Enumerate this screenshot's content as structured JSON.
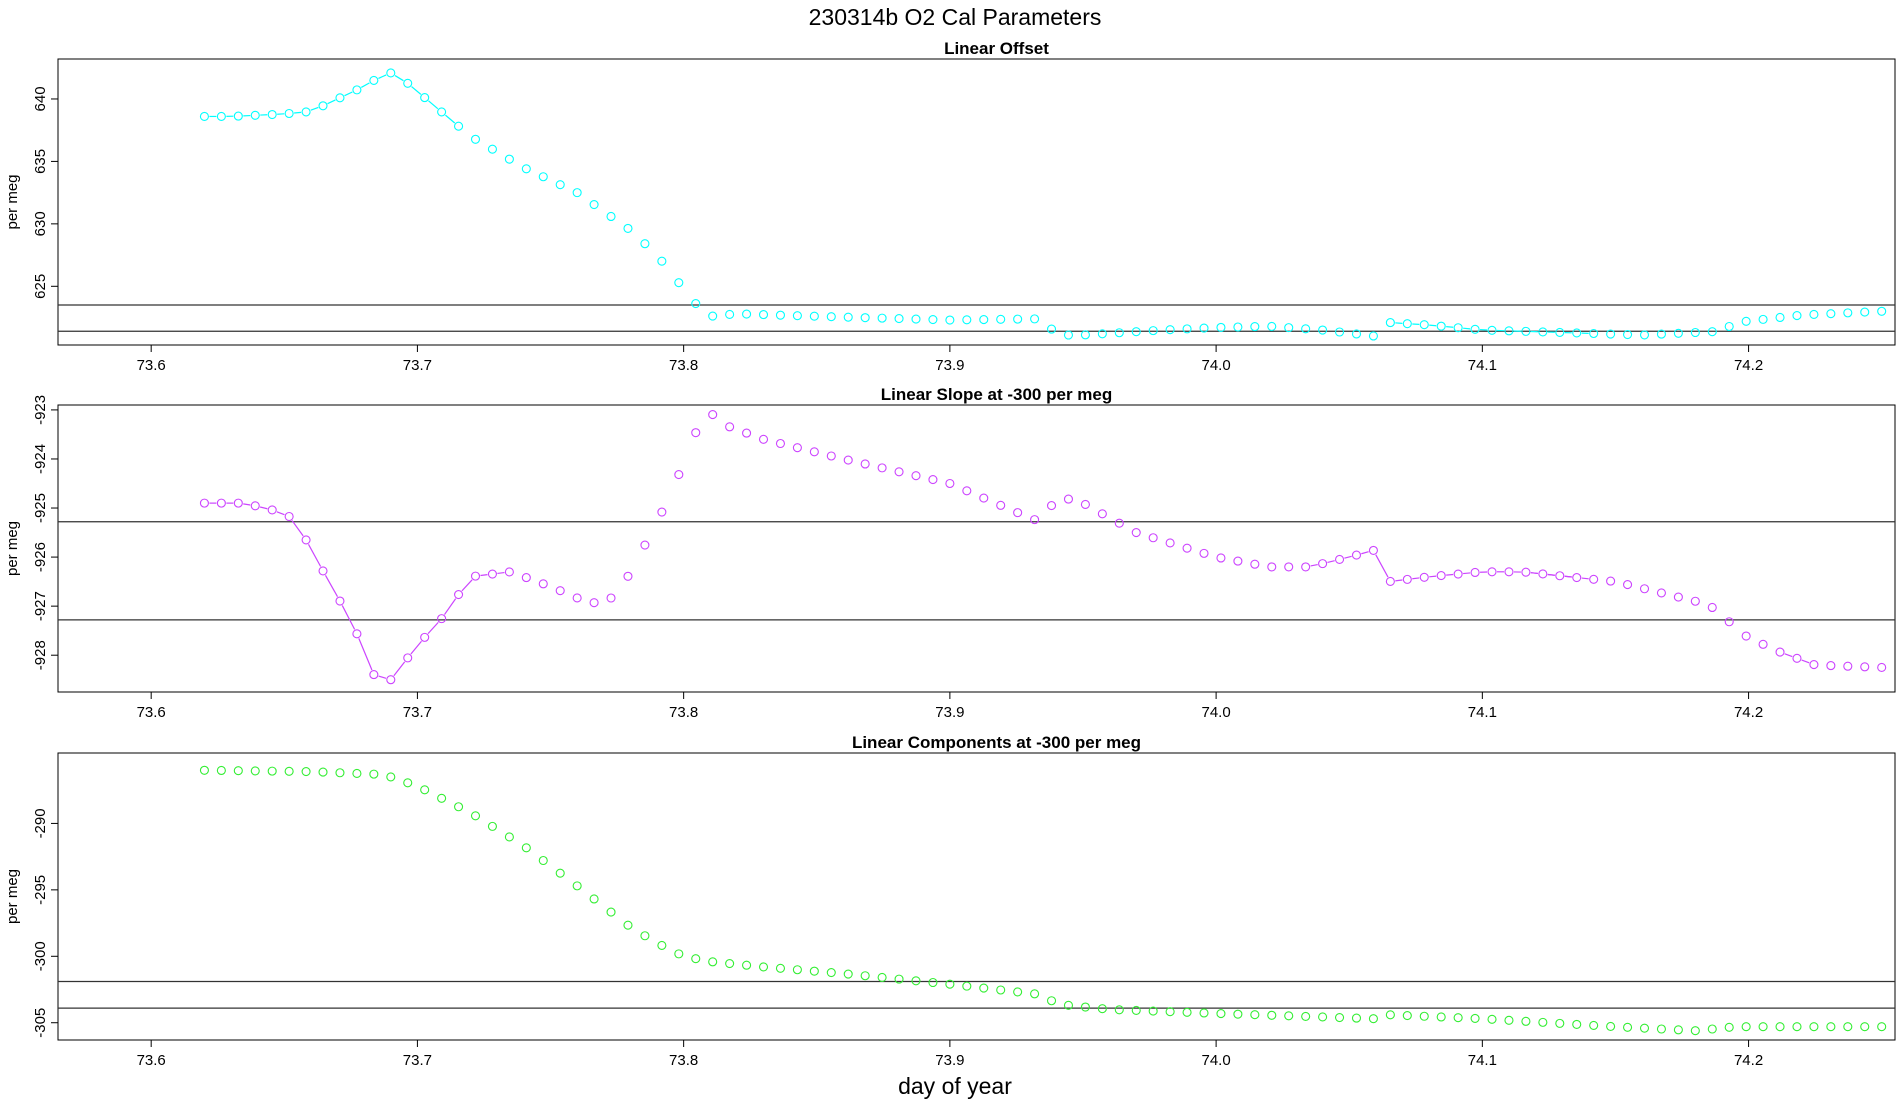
{
  "figure": {
    "title": "230314b   O2 Cal Parameters",
    "xlabel": "day of year"
  },
  "chart_data": [
    {
      "type": "scatter",
      "title": "Linear Offset",
      "ylabel": "per meg",
      "color": "#00ffff",
      "xlim": [
        73.565,
        74.255
      ],
      "ylim": [
        620.3,
        643.2
      ],
      "x_ticks": [
        "73.6",
        "73.7",
        "73.8",
        "73.9",
        "74.0",
        "74.1",
        "74.2"
      ],
      "y_ticks": [
        "625",
        "630",
        "635",
        "640"
      ],
      "hlines": [
        623.5,
        621.4
      ],
      "connected_ranges": [
        [
          0.0,
          0.15
        ],
        [
          0.715,
          0.79
        ],
        [
          0.805,
          0.82
        ]
      ],
      "keys": [
        [
          73.62,
          638.6
        ],
        [
          73.625,
          638.6
        ],
        [
          73.63,
          638.6
        ],
        [
          73.64,
          638.7
        ],
        [
          73.65,
          638.8
        ],
        [
          73.66,
          639.0
        ],
        [
          73.67,
          640.0
        ],
        [
          73.68,
          641.0
        ],
        [
          73.689,
          642.2
        ],
        [
          73.695,
          641.5
        ],
        [
          73.7,
          640.6
        ],
        [
          73.72,
          637.0
        ],
        [
          73.74,
          634.5
        ],
        [
          73.76,
          632.5
        ],
        [
          73.77,
          631.0
        ],
        [
          73.78,
          629.5
        ],
        [
          73.79,
          627.5
        ],
        [
          73.8,
          624.8
        ],
        [
          73.805,
          623.5
        ],
        [
          73.81,
          622.6
        ],
        [
          73.82,
          622.8
        ],
        [
          73.85,
          622.6
        ],
        [
          73.9,
          622.3
        ],
        [
          73.935,
          622.4
        ],
        [
          73.94,
          621.1
        ],
        [
          73.95,
          621.1
        ],
        [
          73.98,
          621.5
        ],
        [
          74.0,
          621.7
        ],
        [
          74.02,
          621.8
        ],
        [
          74.04,
          621.5
        ],
        [
          74.06,
          621.0
        ],
        [
          74.065,
          622.1
        ],
        [
          74.08,
          621.9
        ],
        [
          74.1,
          621.5
        ],
        [
          74.13,
          621.3
        ],
        [
          74.16,
          621.1
        ],
        [
          74.19,
          621.4
        ],
        [
          74.195,
          622.1
        ],
        [
          74.22,
          622.7
        ],
        [
          74.25,
          623.0
        ]
      ]
    },
    {
      "type": "scatter",
      "title": "Linear Slope at -300 per meg",
      "ylabel": "per meg",
      "color": "#cc44ff",
      "xlim": [
        73.565,
        74.255
      ],
      "ylim": [
        -928.75,
        -922.9
      ],
      "x_ticks": [
        "73.6",
        "73.7",
        "73.8",
        "73.9",
        "74.0",
        "74.1",
        "74.2"
      ],
      "y_ticks": [
        "-928",
        "-927",
        "-926",
        "-925",
        "-924",
        "-923"
      ],
      "hlines": [
        -925.28,
        -927.28
      ],
      "connected_ranges": [
        [
          0.0,
          0.18
        ],
        [
          0.66,
          0.82
        ],
        [
          0.94,
          0.95
        ],
        [
          0.795,
          0.81
        ]
      ],
      "keys": [
        [
          73.62,
          -924.9
        ],
        [
          73.635,
          -924.9
        ],
        [
          73.65,
          -925.1
        ],
        [
          73.655,
          -925.3
        ],
        [
          73.66,
          -925.85
        ],
        [
          73.67,
          -926.8
        ],
        [
          73.68,
          -927.85
        ],
        [
          73.685,
          -928.6
        ],
        [
          73.69,
          -928.5
        ],
        [
          73.7,
          -927.8
        ],
        [
          73.71,
          -927.2
        ],
        [
          73.72,
          -926.4
        ],
        [
          73.735,
          -926.3
        ],
        [
          73.75,
          -926.6
        ],
        [
          73.765,
          -926.95
        ],
        [
          73.775,
          -926.8
        ],
        [
          73.78,
          -926.3
        ],
        [
          73.79,
          -925.3
        ],
        [
          73.8,
          -924.1
        ],
        [
          73.805,
          -923.4
        ],
        [
          73.81,
          -923.05
        ],
        [
          73.815,
          -923.3
        ],
        [
          73.83,
          -923.6
        ],
        [
          73.86,
          -924.0
        ],
        [
          73.9,
          -924.5
        ],
        [
          73.93,
          -925.2
        ],
        [
          73.935,
          -925.3
        ],
        [
          73.94,
          -924.75
        ],
        [
          73.95,
          -924.9
        ],
        [
          73.97,
          -925.5
        ],
        [
          74.0,
          -926.0
        ],
        [
          74.02,
          -926.2
        ],
        [
          74.035,
          -926.2
        ],
        [
          74.05,
          -926.0
        ],
        [
          74.06,
          -925.85
        ],
        [
          74.065,
          -926.5
        ],
        [
          74.08,
          -926.4
        ],
        [
          74.1,
          -926.3
        ],
        [
          74.115,
          -926.3
        ],
        [
          74.15,
          -926.5
        ],
        [
          74.18,
          -926.9
        ],
        [
          74.19,
          -927.1
        ],
        [
          74.195,
          -927.5
        ],
        [
          74.21,
          -927.9
        ],
        [
          74.225,
          -928.2
        ],
        [
          74.25,
          -928.25
        ]
      ]
    },
    {
      "type": "scatter",
      "title": "Linear Components at -300 per meg",
      "ylabel": "per meg",
      "color": "#33ee33",
      "xlim": [
        73.565,
        74.255
      ],
      "ylim": [
        -306.3,
        -284.7
      ],
      "x_ticks": [
        "73.6",
        "73.7",
        "73.8",
        "73.9",
        "74.0",
        "74.1",
        "74.2"
      ],
      "y_ticks": [
        "-305",
        "-300",
        "-295",
        "-290"
      ],
      "hlines": [
        -301.9,
        -303.9
      ],
      "connected_ranges": [],
      "keys": [
        [
          73.62,
          -286.0
        ],
        [
          73.66,
          -286.1
        ],
        [
          73.685,
          -286.3
        ],
        [
          73.69,
          -286.5
        ],
        [
          73.7,
          -287.2
        ],
        [
          73.72,
          -289.2
        ],
        [
          73.74,
          -291.7
        ],
        [
          73.76,
          -294.7
        ],
        [
          73.78,
          -297.8
        ],
        [
          73.79,
          -299.0
        ],
        [
          73.8,
          -300.0
        ],
        [
          73.81,
          -300.4
        ],
        [
          73.83,
          -300.8
        ],
        [
          73.86,
          -301.3
        ],
        [
          73.9,
          -302.1
        ],
        [
          73.935,
          -302.9
        ],
        [
          73.94,
          -303.6
        ],
        [
          73.96,
          -304.0
        ],
        [
          74.0,
          -304.3
        ],
        [
          74.06,
          -304.7
        ],
        [
          74.065,
          -304.4
        ],
        [
          74.1,
          -304.7
        ],
        [
          74.15,
          -305.3
        ],
        [
          74.18,
          -305.6
        ],
        [
          74.195,
          -305.3
        ],
        [
          74.22,
          -305.3
        ],
        [
          74.25,
          -305.3
        ]
      ]
    }
  ]
}
